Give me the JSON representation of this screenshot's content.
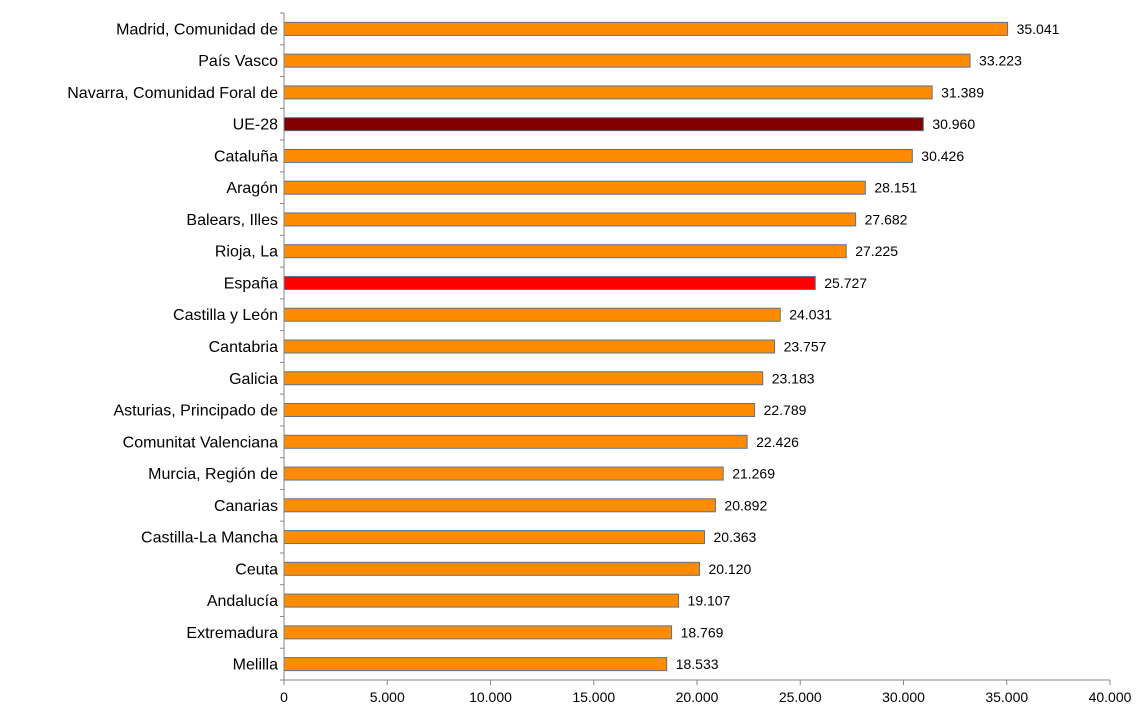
{
  "chart_data": {
    "type": "bar",
    "orientation": "horizontal",
    "categories": [
      "Madrid, Comunidad de",
      "País Vasco",
      "Navarra, Comunidad Foral de",
      "UE-28",
      "Cataluña",
      "Aragón",
      "Balears, Illes",
      "Rioja, La",
      "España",
      "Castilla y León",
      "Cantabria",
      "Galicia",
      "Asturias, Principado de",
      "Comunitat Valenciana",
      "Murcia, Región de",
      "Canarias",
      "Castilla-La Mancha",
      "Ceuta",
      "Andalucía",
      "Extremadura",
      "Melilla"
    ],
    "values": [
      35041,
      33223,
      31389,
      30960,
      30426,
      28151,
      27682,
      27225,
      25727,
      24031,
      23757,
      23183,
      22789,
      22426,
      21269,
      20892,
      20363,
      20120,
      19107,
      18769,
      18533
    ],
    "value_labels": [
      "35.041",
      "33.223",
      "31.389",
      "30.960",
      "30.426",
      "28.151",
      "27.682",
      "27.225",
      "25.727",
      "24.031",
      "23.757",
      "23.183",
      "22.789",
      "22.426",
      "21.269",
      "20.892",
      "20.363",
      "20.120",
      "19.107",
      "18.769",
      "18.533"
    ],
    "bar_colors": [
      "#FF8C00",
      "#FF8C00",
      "#FF8C00",
      "#800000",
      "#FF8C00",
      "#FF8C00",
      "#FF8C00",
      "#FF8C00",
      "#FF0000",
      "#FF8C00",
      "#FF8C00",
      "#FF8C00",
      "#FF8C00",
      "#FF8C00",
      "#FF8C00",
      "#FF8C00",
      "#FF8C00",
      "#FF8C00",
      "#FF8C00",
      "#FF8C00",
      "#FF8C00"
    ],
    "bar_outline_color": "#5B7290",
    "xlim": [
      0,
      40000
    ],
    "xticks": [
      0,
      5000,
      10000,
      15000,
      20000,
      25000,
      30000,
      35000,
      40000
    ],
    "xtick_labels": [
      "0",
      "5.000",
      "10.000",
      "15.000",
      "20.000",
      "25.000",
      "30.000",
      "35.000",
      "40.000"
    ],
    "grid": false,
    "legend": "none"
  }
}
